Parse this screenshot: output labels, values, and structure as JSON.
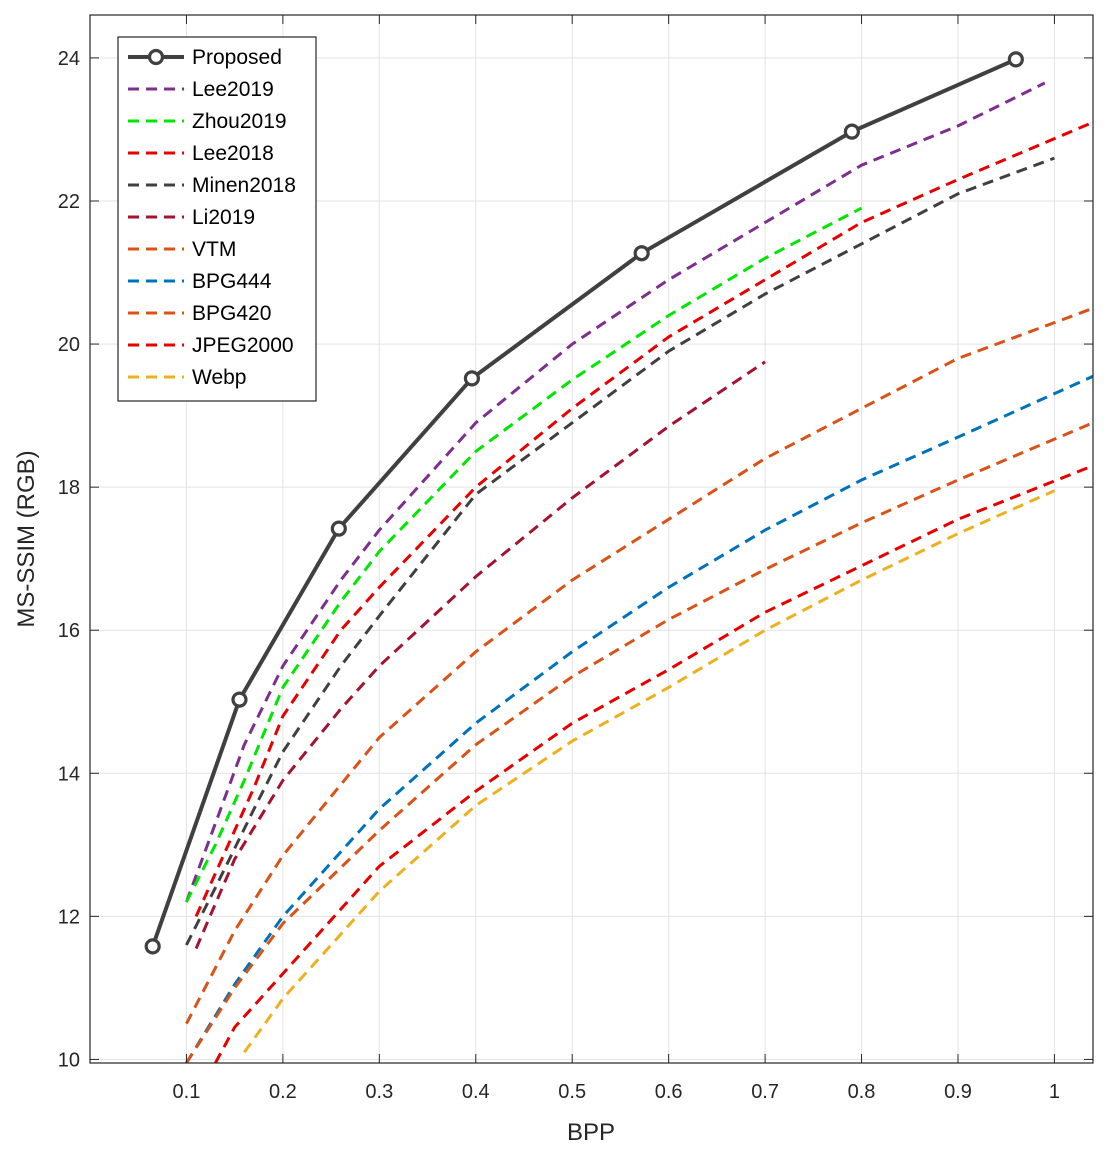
{
  "chart_data": {
    "type": "line",
    "xlabel": "BPP",
    "ylabel": "MS-SSIM (RGB)",
    "xlim": [
      0.0,
      1.04
    ],
    "ylim": [
      9.95,
      24.6
    ],
    "x_ticks": [
      0.1,
      0.2,
      0.3,
      0.4,
      0.5,
      0.6,
      0.7,
      0.8,
      0.9,
      1
    ],
    "x_tick_labels": [
      "0.1",
      "0.2",
      "0.3",
      "0.4",
      "0.5",
      "0.6",
      "0.7",
      "0.8",
      "0.9",
      "1"
    ],
    "y_ticks": [
      10,
      12,
      14,
      16,
      18,
      20,
      22,
      24
    ],
    "y_tick_labels": [
      "10",
      "12",
      "14",
      "16",
      "18",
      "20",
      "22",
      "24"
    ],
    "grid": true,
    "legend_position": "top-left",
    "series": [
      {
        "name": "Proposed",
        "color": "#404040",
        "style": "solid-marker",
        "x": [
          0.065,
          0.155,
          0.258,
          0.396,
          0.572,
          0.79,
          0.96
        ],
        "y": [
          11.58,
          15.03,
          17.42,
          19.52,
          21.27,
          22.97,
          23.98
        ]
      },
      {
        "name": "Lee2019",
        "color": "#7E2F8E",
        "style": "dashed",
        "x": [
          0.1,
          0.13,
          0.16,
          0.2,
          0.26,
          0.3,
          0.4,
          0.5,
          0.6,
          0.7,
          0.8,
          0.9,
          0.99
        ],
        "y": [
          12.2,
          13.3,
          14.4,
          15.5,
          16.7,
          17.4,
          18.9,
          20.0,
          20.9,
          21.7,
          22.5,
          23.05,
          23.65
        ]
      },
      {
        "name": "Zhou2019",
        "color": "#00E600",
        "style": "dashed",
        "x": [
          0.1,
          0.13,
          0.16,
          0.2,
          0.26,
          0.3,
          0.4,
          0.5,
          0.6,
          0.7,
          0.8
        ],
        "y": [
          12.2,
          13.0,
          13.9,
          15.2,
          16.4,
          17.1,
          18.5,
          19.5,
          20.4,
          21.2,
          21.9
        ]
      },
      {
        "name": "Lee2018",
        "color": "#E60000",
        "style": "dashed",
        "x": [
          0.11,
          0.14,
          0.17,
          0.2,
          0.26,
          0.3,
          0.4,
          0.5,
          0.6,
          0.7,
          0.8,
          0.9,
          1.04
        ],
        "y": [
          12.0,
          12.9,
          13.8,
          14.8,
          16.0,
          16.6,
          18.0,
          19.1,
          20.1,
          20.9,
          21.7,
          22.3,
          23.1
        ]
      },
      {
        "name": "Minen2018",
        "color": "#404040",
        "style": "dashed",
        "x": [
          0.1,
          0.13,
          0.17,
          0.2,
          0.26,
          0.3,
          0.4,
          0.5,
          0.6,
          0.7,
          0.8,
          0.9,
          1.0
        ],
        "y": [
          11.6,
          12.4,
          13.5,
          14.3,
          15.5,
          16.2,
          17.9,
          18.9,
          19.9,
          20.7,
          21.4,
          22.1,
          22.6
        ]
      },
      {
        "name": "Li2019",
        "color": "#A2142F",
        "style": "dashed",
        "x": [
          0.11,
          0.15,
          0.2,
          0.26,
          0.3,
          0.4,
          0.5,
          0.6,
          0.7
        ],
        "y": [
          11.55,
          12.8,
          13.9,
          14.9,
          15.5,
          16.75,
          17.85,
          18.85,
          19.75
        ]
      },
      {
        "name": "VTM",
        "color": "#D95319",
        "style": "dashed",
        "x": [
          0.1,
          0.15,
          0.2,
          0.3,
          0.4,
          0.5,
          0.6,
          0.7,
          0.8,
          0.9,
          1.04
        ],
        "y": [
          10.5,
          11.8,
          12.85,
          14.5,
          15.7,
          16.7,
          17.55,
          18.4,
          19.1,
          19.8,
          20.5
        ]
      },
      {
        "name": "BPG444",
        "color": "#0072BD",
        "style": "dashed",
        "x": [
          0.1,
          0.15,
          0.2,
          0.3,
          0.4,
          0.5,
          0.6,
          0.7,
          0.8,
          0.9,
          1.04
        ],
        "y": [
          9.95,
          11.05,
          12.0,
          13.5,
          14.7,
          15.7,
          16.6,
          17.4,
          18.1,
          18.7,
          19.55
        ]
      },
      {
        "name": "BPG420",
        "color": "#D95319",
        "style": "dashed",
        "x": [
          0.1,
          0.15,
          0.2,
          0.3,
          0.4,
          0.5,
          0.6,
          0.7,
          0.8,
          0.9,
          1.04
        ],
        "y": [
          9.95,
          11.0,
          11.9,
          13.2,
          14.4,
          15.35,
          16.15,
          16.85,
          17.5,
          18.1,
          18.9
        ]
      },
      {
        "name": "JPEG2000",
        "color": "#E60000",
        "style": "dashed",
        "x": [
          0.13,
          0.15,
          0.2,
          0.3,
          0.4,
          0.5,
          0.6,
          0.7,
          0.8,
          0.9,
          1.04
        ],
        "y": [
          9.95,
          10.45,
          11.2,
          12.7,
          13.75,
          14.7,
          15.45,
          16.25,
          16.9,
          17.55,
          18.3
        ]
      },
      {
        "name": "Webp",
        "color": "#EDB120",
        "style": "dashed",
        "x": [
          0.16,
          0.2,
          0.25,
          0.3,
          0.4,
          0.5,
          0.6,
          0.7,
          0.8,
          0.9,
          1.0
        ],
        "y": [
          10.1,
          10.85,
          11.6,
          12.35,
          13.55,
          14.45,
          15.2,
          16.0,
          16.7,
          17.35,
          17.95
        ]
      }
    ]
  }
}
